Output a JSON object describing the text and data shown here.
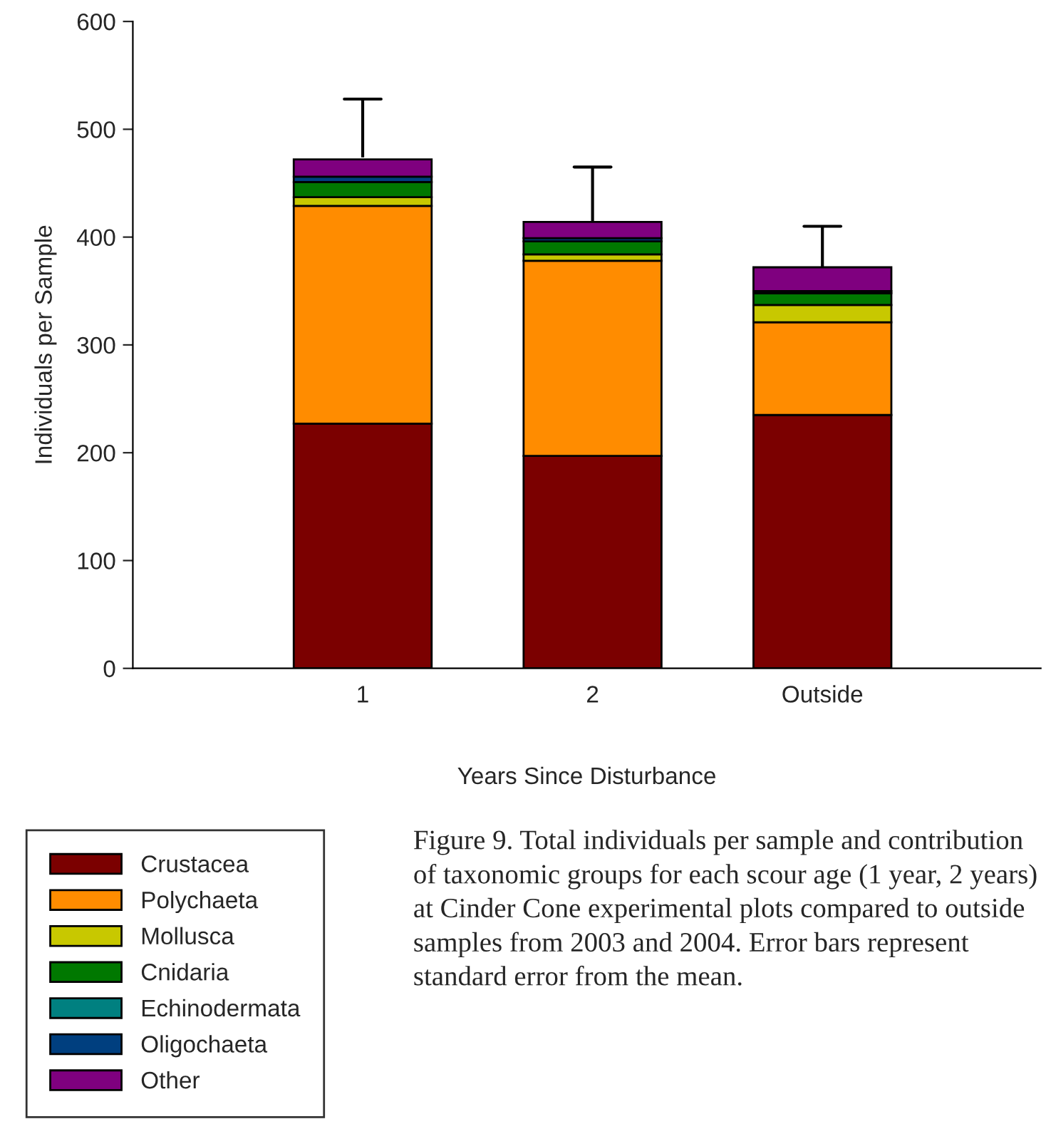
{
  "chart_data": {
    "type": "bar",
    "stacked": true,
    "xlabel": "Years Since Disturbance",
    "ylabel": "Individuals per Sample",
    "categories": [
      "1",
      "2",
      "Outside"
    ],
    "series": [
      {
        "name": "Crustacea",
        "color": "#7b0000",
        "values": [
          227,
          197,
          235
        ]
      },
      {
        "name": "Polychaeta",
        "color": "#ff8c00",
        "values": [
          202,
          181,
          86
        ]
      },
      {
        "name": "Mollusca",
        "color": "#c8c800",
        "values": [
          8,
          6,
          16
        ]
      },
      {
        "name": "Cnidaria",
        "color": "#007800",
        "values": [
          14,
          12,
          11
        ]
      },
      {
        "name": "Echinodermata",
        "color": "#008080",
        "values": [
          null,
          null,
          0
        ]
      },
      {
        "name": "Oligochaeta",
        "color": "#003f7f",
        "values": [
          5,
          3,
          2
        ]
      },
      {
        "name": "Other",
        "color": "#7f007f",
        "values": [
          16,
          15,
          22
        ],
        "errors": [
          [
            474,
            528
          ],
          [
            415,
            465
          ],
          [
            372,
            410
          ]
        ]
      }
    ],
    "ylim": [
      0,
      600
    ],
    "yticks": [
      0,
      100,
      200,
      300,
      400,
      500,
      600
    ],
    "legend": "bottom left",
    "grid": false,
    "annotations": [
      "Figure 9. Total individuals per sample and contribution of taxonomic groups for each scour age (1 year, 2 years) at Cinder Cone experimental plots compared to outside samples from 2003 and 2004. Error bars represent standard error from the mean."
    ]
  }
}
